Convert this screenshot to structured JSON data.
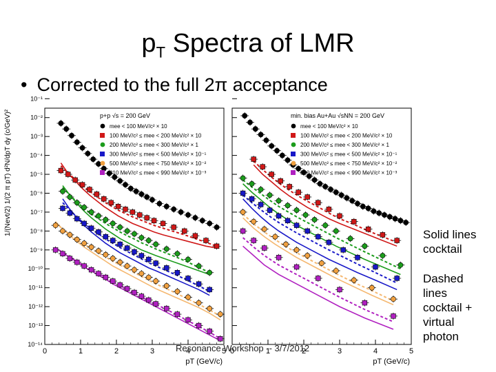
{
  "slide": {
    "title_main": "p",
    "title_sub": "T",
    "title_rest": " Spectra of LMR",
    "bullet": "Corrected to the full 2π acceptance",
    "note_solid": [
      "Solid lines",
      "cocktail"
    ],
    "note_dashed": [
      "Dashed",
      "lines",
      "cocktail +",
      "virtual",
      "photon"
    ],
    "footer": "Resonance Workshop -- 3/7/2012"
  },
  "colors": {
    "black": "#000000",
    "red": "#d01818",
    "green": "#1c9c1c",
    "blue": "#1818c8",
    "orange": "#f0a040",
    "magenta": "#b020c0",
    "cocktail_orange": "#f5b870"
  },
  "chart_data": [
    {
      "type": "scatter",
      "title": "p+p √s = 200 GeV",
      "xlabel": "pT (GeV/c)",
      "ylabel": "1/(Nevt/2) 1/(2 π pT) d²N/dpT dy (c/GeV)²",
      "xlim": [
        0,
        5
      ],
      "ylim_log10": [
        -14,
        -1.5
      ],
      "x_ticks": [
        "0",
        "1",
        "2",
        "3",
        "4",
        "5"
      ],
      "y_ticks": [
        "10⁻¹⁴",
        "10⁻¹³",
        "10⁻¹²",
        "10⁻¹¹",
        "10⁻¹⁰",
        "10⁻⁹",
        "10⁻⁸",
        "10⁻⁷",
        "10⁻⁶",
        "10⁻⁵",
        "10⁻⁴",
        "10⁻³",
        "10⁻²",
        "10⁻¹"
      ],
      "legend_position": "top-right",
      "series": [
        {
          "name": "mee < 100 MeV/c² × 10",
          "color": "black",
          "marker": "circle",
          "x": [
            0.45,
            0.6,
            0.75,
            0.9,
            1.05,
            1.2,
            1.35,
            1.5,
            1.65,
            1.8,
            1.95,
            2.1,
            2.25,
            2.4,
            2.55,
            2.7,
            2.85,
            3.0,
            3.2,
            3.4,
            3.6,
            3.8,
            4.0,
            4.2,
            4.4,
            4.6,
            4.8
          ],
          "log10y": [
            -2.3,
            -2.6,
            -2.95,
            -3.3,
            -3.6,
            -3.9,
            -4.2,
            -4.45,
            -4.7,
            -4.95,
            -5.15,
            -5.35,
            -5.55,
            -5.75,
            -5.9,
            -6.05,
            -6.2,
            -6.35,
            -6.55,
            -6.7,
            -6.85,
            -7.0,
            -7.15,
            -7.3,
            -7.45,
            -7.6,
            -7.8
          ]
        },
        {
          "name": "100 MeV/c² ≤ mee < 200 MeV/c² × 10",
          "color": "red",
          "marker": "square",
          "x": [
            0.45,
            0.65,
            0.85,
            1.05,
            1.25,
            1.45,
            1.65,
            1.85,
            2.05,
            2.25,
            2.45,
            2.65,
            2.85,
            3.05,
            3.3,
            3.6,
            3.9,
            4.2,
            4.5,
            4.8
          ],
          "log10y": [
            -4.8,
            -5.0,
            -5.3,
            -5.55,
            -5.8,
            -6.05,
            -6.3,
            -6.5,
            -6.7,
            -6.85,
            -7.0,
            -7.15,
            -7.3,
            -7.45,
            -7.6,
            -7.8,
            -8.0,
            -8.25,
            -8.5,
            -8.8
          ],
          "cocktail_log10y": [
            -4.4,
            -4.95,
            -5.35,
            -5.75,
            -6.1,
            -6.4,
            -6.7,
            -6.95,
            -7.2,
            -7.4,
            -7.6,
            -7.75,
            -7.9,
            -8.05,
            -8.2,
            -8.35,
            -8.5,
            -8.65,
            -8.8,
            -8.9
          ]
        },
        {
          "name": "200 MeV/c² ≤ mee < 300 MeV/c² × 1",
          "color": "green",
          "marker": "circle",
          "x": [
            0.5,
            0.7,
            0.9,
            1.1,
            1.3,
            1.5,
            1.7,
            1.9,
            2.1,
            2.3,
            2.5,
            2.7,
            2.9,
            3.1,
            3.4,
            3.7,
            4.0,
            4.3,
            4.6
          ],
          "log10y": [
            -5.9,
            -6.2,
            -6.5,
            -6.75,
            -7.0,
            -7.2,
            -7.4,
            -7.6,
            -7.8,
            -8.0,
            -8.15,
            -8.35,
            -8.5,
            -8.7,
            -8.95,
            -9.2,
            -9.5,
            -9.85,
            -10.2
          ],
          "cocktail_log10y": [
            -5.6,
            -6.1,
            -6.55,
            -6.95,
            -7.3,
            -7.6,
            -7.9,
            -8.15,
            -8.4,
            -8.6,
            -8.8,
            -9.0,
            -9.15,
            -9.3,
            -9.5,
            -9.7,
            -9.9,
            -10.1,
            -10.3
          ]
        },
        {
          "name": "300 MeV/c² ≤ mee < 500 MeV/c² × 10⁻¹",
          "color": "blue",
          "marker": "square",
          "x": [
            0.5,
            0.7,
            0.9,
            1.1,
            1.3,
            1.5,
            1.7,
            1.9,
            2.1,
            2.3,
            2.5,
            2.7,
            2.9,
            3.1,
            3.4,
            3.7,
            4.0,
            4.3,
            4.6
          ],
          "log10y": [
            -6.8,
            -7.05,
            -7.35,
            -7.6,
            -7.85,
            -8.05,
            -8.3,
            -8.5,
            -8.7,
            -8.9,
            -9.1,
            -9.3,
            -9.5,
            -9.7,
            -9.95,
            -10.2,
            -10.5,
            -10.8,
            -11.1
          ],
          "cocktail_log10y": [
            -6.3,
            -6.85,
            -7.3,
            -7.7,
            -8.05,
            -8.35,
            -8.65,
            -8.9,
            -9.15,
            -9.35,
            -9.55,
            -9.75,
            -9.95,
            -10.1,
            -10.35,
            -10.6,
            -10.85,
            -11.1,
            -11.4
          ]
        },
        {
          "name": "500 MeV/c² ≤ mee < 750 MeV/c² × 10⁻²",
          "color": "orange",
          "marker": "circle",
          "x": [
            0.3,
            0.5,
            0.7,
            0.9,
            1.1,
            1.3,
            1.5,
            1.7,
            1.9,
            2.1,
            2.3,
            2.5,
            2.7,
            2.9,
            3.1,
            3.4,
            3.7,
            4.0,
            4.3,
            4.6,
            4.9
          ],
          "log10y": [
            -7.7,
            -8.0,
            -8.2,
            -8.45,
            -8.65,
            -8.85,
            -9.05,
            -9.25,
            -9.45,
            -9.65,
            -9.85,
            -10.05,
            -10.25,
            -10.45,
            -10.65,
            -10.9,
            -11.2,
            -11.5,
            -11.8,
            -12.1,
            -12.4
          ],
          "cocktail_log10y": [
            -7.5,
            -7.9,
            -8.25,
            -8.55,
            -8.85,
            -9.1,
            -9.35,
            -9.6,
            -9.85,
            -10.05,
            -10.25,
            -10.45,
            -10.65,
            -10.85,
            -11.05,
            -11.3,
            -11.55,
            -11.8,
            -12.05,
            -12.35,
            -12.7
          ]
        },
        {
          "name": "810 MeV/c² ≤ mee < 990 MeV/c² × 10⁻³",
          "color": "magenta",
          "marker": "square",
          "x": [
            0.3,
            0.5,
            0.7,
            0.9,
            1.1,
            1.3,
            1.5,
            1.7,
            1.9,
            2.1,
            2.3,
            2.5,
            2.7,
            2.9,
            3.1,
            3.4,
            3.7,
            4.0,
            4.3,
            4.6,
            4.9
          ],
          "log10y": [
            -9.0,
            -9.2,
            -9.45,
            -9.65,
            -9.85,
            -10.05,
            -10.25,
            -10.45,
            -10.65,
            -10.85,
            -11.05,
            -11.25,
            -11.45,
            -11.65,
            -11.85,
            -12.1,
            -12.4,
            -12.7,
            -13.0,
            -13.3,
            -13.7
          ],
          "cocktail_log10y": [
            -8.9,
            -9.15,
            -9.4,
            -9.65,
            -9.9,
            -10.1,
            -10.35,
            -10.55,
            -10.8,
            -11.0,
            -11.2,
            -11.4,
            -11.6,
            -11.8,
            -12.0,
            -12.3,
            -12.6,
            -12.9,
            -13.2,
            -13.5,
            -13.8
          ]
        }
      ]
    },
    {
      "type": "scatter",
      "title": "min. bias Au+Au √sNN = 200 GeV",
      "xlabel": "pT (GeV/c)",
      "xlim": [
        0,
        5
      ],
      "ylim_log10": [
        -14,
        -1.5
      ],
      "x_ticks": [
        "0",
        "1",
        "2",
        "3",
        "4",
        "5"
      ],
      "legend_position": "top-right",
      "series": [
        {
          "name": "mee < 100 MeV/c² × 10",
          "color": "black",
          "marker": "circle",
          "x": [
            0.35,
            0.5,
            0.65,
            0.8,
            0.95,
            1.1,
            1.25,
            1.4,
            1.55,
            1.7,
            1.85,
            2.0,
            2.15,
            2.3,
            2.45,
            2.6,
            2.75,
            2.9,
            3.05,
            3.2,
            3.35,
            3.5,
            3.65,
            3.8,
            3.95,
            4.1,
            4.25,
            4.4,
            4.55,
            4.7,
            4.85
          ],
          "log10y": [
            -1.9,
            -2.25,
            -2.6,
            -2.9,
            -3.2,
            -3.5,
            -3.75,
            -4.0,
            -4.25,
            -4.5,
            -4.7,
            -4.9,
            -5.1,
            -5.3,
            -5.5,
            -5.65,
            -5.8,
            -5.95,
            -6.1,
            -6.25,
            -6.4,
            -6.55,
            -6.7,
            -6.8,
            -6.95,
            -7.05,
            -7.15,
            -7.25,
            -7.35,
            -7.45,
            -7.55
          ]
        },
        {
          "name": "100 MeV/c² ≤ mee < 200 MeV/c² × 10",
          "color": "red",
          "marker": "square",
          "x": [
            0.6,
            0.85,
            1.1,
            1.35,
            1.6,
            1.85,
            2.1,
            2.4,
            2.7,
            3.0,
            3.4,
            3.8,
            4.2,
            4.6
          ],
          "log10y": [
            -4.2,
            -4.6,
            -5.0,
            -5.35,
            -5.65,
            -5.95,
            -6.2,
            -6.5,
            -6.85,
            -7.2,
            -7.5,
            -7.9,
            -8.2,
            -8.5
          ],
          "cocktail_log10y": [
            -4.5,
            -5.0,
            -5.4,
            -5.8,
            -6.15,
            -6.45,
            -6.75,
            -7.05,
            -7.35,
            -7.6,
            -7.9,
            -8.2,
            -8.5,
            -8.8
          ]
        },
        {
          "name": "200 MeV/c² ≤ mee < 300 MeV/c² × 1",
          "color": "green",
          "marker": "circle",
          "x": [
            0.3,
            0.55,
            0.8,
            1.05,
            1.3,
            1.55,
            1.8,
            2.05,
            2.3,
            2.6,
            2.9,
            3.3,
            3.7,
            4.2,
            4.7
          ],
          "log10y": [
            -5.2,
            -5.5,
            -5.8,
            -6.1,
            -6.4,
            -6.65,
            -6.9,
            -7.15,
            -7.4,
            -7.7,
            -8.0,
            -8.4,
            -8.8,
            -9.3,
            -9.8
          ],
          "cocktail_log10y": [
            -5.5,
            -5.95,
            -6.35,
            -6.75,
            -7.1,
            -7.4,
            -7.7,
            -7.95,
            -8.2,
            -8.5,
            -8.8,
            -9.15,
            -9.5,
            -9.9,
            -10.3
          ]
        },
        {
          "name": "300 MeV/c² ≤ mee < 500 MeV/c² × 10⁻¹",
          "color": "blue",
          "marker": "square",
          "x": [
            0.3,
            0.55,
            0.8,
            1.05,
            1.3,
            1.55,
            1.8,
            2.1,
            2.4,
            2.7,
            3.1,
            3.5,
            4.0,
            4.6
          ],
          "log10y": [
            -6.0,
            -6.3,
            -6.6,
            -6.9,
            -7.2,
            -7.45,
            -7.7,
            -8.0,
            -8.3,
            -8.6,
            -9.0,
            -9.4,
            -9.9,
            -10.5
          ],
          "cocktail_log10y": [
            -6.3,
            -6.8,
            -7.25,
            -7.65,
            -8.0,
            -8.3,
            -8.6,
            -8.9,
            -9.2,
            -9.5,
            -9.85,
            -10.2,
            -10.6,
            -11.1
          ]
        },
        {
          "name": "500 MeV/c² ≤ mee < 750 MeV/c² × 10⁻²",
          "color": "orange",
          "marker": "circle",
          "x": [
            0.3,
            0.6,
            0.9,
            1.2,
            1.5,
            1.8,
            2.1,
            2.5,
            2.9,
            3.4,
            3.9,
            4.5
          ],
          "log10y": [
            -7.0,
            -7.5,
            -7.9,
            -8.3,
            -8.7,
            -9.0,
            -9.3,
            -9.7,
            -10.1,
            -10.6,
            -11.0,
            -11.6
          ],
          "cocktail_log10y": [
            -7.3,
            -7.85,
            -8.3,
            -8.7,
            -9.05,
            -9.4,
            -9.7,
            -10.1,
            -10.5,
            -10.95,
            -11.4,
            -11.9
          ]
        },
        {
          "name": "810 MeV/c² ≤ mee < 990 MeV/c² × 10⁻³",
          "color": "magenta",
          "marker": "square",
          "x": [
            0.3,
            0.6,
            0.9,
            1.3,
            1.8,
            2.4,
            3.0,
            3.7,
            4.5
          ],
          "log10y": [
            -8.0,
            -8.5,
            -8.9,
            -9.4,
            -9.9,
            -10.5,
            -11.1,
            -11.8,
            -12.5
          ],
          "cocktail_log10y": [
            -8.8,
            -9.3,
            -9.8,
            -10.3,
            -10.8,
            -11.4,
            -12.0,
            -12.6,
            -13.2
          ]
        }
      ]
    }
  ]
}
